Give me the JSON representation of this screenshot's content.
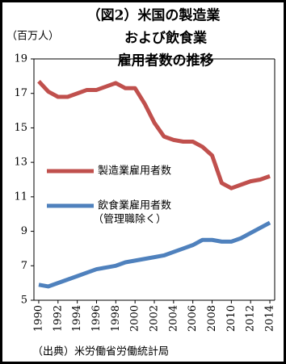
{
  "chart_data": {
    "type": "line",
    "title": [
      "（図2）米国の製造業",
      "および飲食業",
      "雇用者数の推移"
    ],
    "y_label": "（百万人）",
    "source": "（出典）米労働省労働統計局",
    "x": [
      1990,
      1991,
      1992,
      1993,
      1994,
      1995,
      1996,
      1997,
      1998,
      1999,
      2000,
      2001,
      2002,
      2003,
      2004,
      2005,
      2006,
      2007,
      2008,
      2009,
      2010,
      2011,
      2012,
      2013,
      2014
    ],
    "xlim": [
      1989.5,
      2014.5
    ],
    "xticks": [
      1990,
      1992,
      1994,
      1996,
      1998,
      2000,
      2002,
      2004,
      2006,
      2008,
      2010,
      2012,
      2014
    ],
    "ylim": [
      5,
      19
    ],
    "yticks": [
      5,
      7,
      9,
      11,
      13,
      15,
      17,
      19
    ],
    "series": [
      {
        "name": "製造業雇用者数",
        "color": "#c0504d",
        "values": [
          17.7,
          17.1,
          16.8,
          16.8,
          17.0,
          17.2,
          17.2,
          17.4,
          17.6,
          17.3,
          17.3,
          16.4,
          15.3,
          14.5,
          14.3,
          14.2,
          14.2,
          13.9,
          13.4,
          11.8,
          11.5,
          11.7,
          11.9,
          12.0,
          12.2
        ]
      },
      {
        "name": "飲食業雇用者数",
        "note": "（管理職除く）",
        "color": "#4f81bd",
        "values": [
          5.9,
          5.8,
          6.0,
          6.2,
          6.4,
          6.6,
          6.8,
          6.9,
          7.0,
          7.2,
          7.3,
          7.4,
          7.5,
          7.6,
          7.8,
          8.0,
          8.2,
          8.5,
          8.5,
          8.4,
          8.4,
          8.6,
          8.9,
          9.2,
          9.5
        ]
      }
    ]
  }
}
